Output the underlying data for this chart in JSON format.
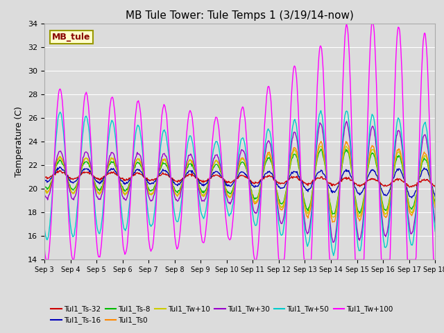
{
  "title": "MB Tule Tower: Tule Temps 1 (3/19/14-now)",
  "ylabel": "Temperature (C)",
  "ylim": [
    14,
    34
  ],
  "yticks": [
    14,
    16,
    18,
    20,
    22,
    24,
    26,
    28,
    30,
    32,
    34
  ],
  "fig_bg": "#dcdcdc",
  "plot_bg": "#dcdcdc",
  "grid_color": "#ffffff",
  "series": [
    {
      "label": "Tul1_Ts-32",
      "color": "#cc0000"
    },
    {
      "label": "Tul1_Ts-16",
      "color": "#0000bb"
    },
    {
      "label": "Tul1_Ts-8",
      "color": "#00bb00"
    },
    {
      "label": "Tul1_Ts0",
      "color": "#ff8800"
    },
    {
      "label": "Tul1_Tw+10",
      "color": "#cccc00"
    },
    {
      "label": "Tul1_Tw+30",
      "color": "#9900cc"
    },
    {
      "label": "Tul1_Tw+50",
      "color": "#00cccc"
    },
    {
      "label": "Tul1_Tw+100",
      "color": "#ff00ff"
    }
  ],
  "box_facecolor": "#ffffcc",
  "box_edgecolor": "#999900",
  "box_text": "MB_tule",
  "box_text_color": "#880000",
  "xtick_labels": [
    "Sep 3",
    "Sep 4",
    "Sep 5",
    "Sep 6",
    "Sep 7",
    "Sep 8",
    "Sep 9",
    "Sep 10",
    "Sep 11",
    "Sep 12",
    "Sep 13",
    "Sep 14",
    "Sep 15",
    "Sep 16",
    "Sep 17",
    "Sep 18"
  ],
  "n_days": 15,
  "line_width": 1.0
}
